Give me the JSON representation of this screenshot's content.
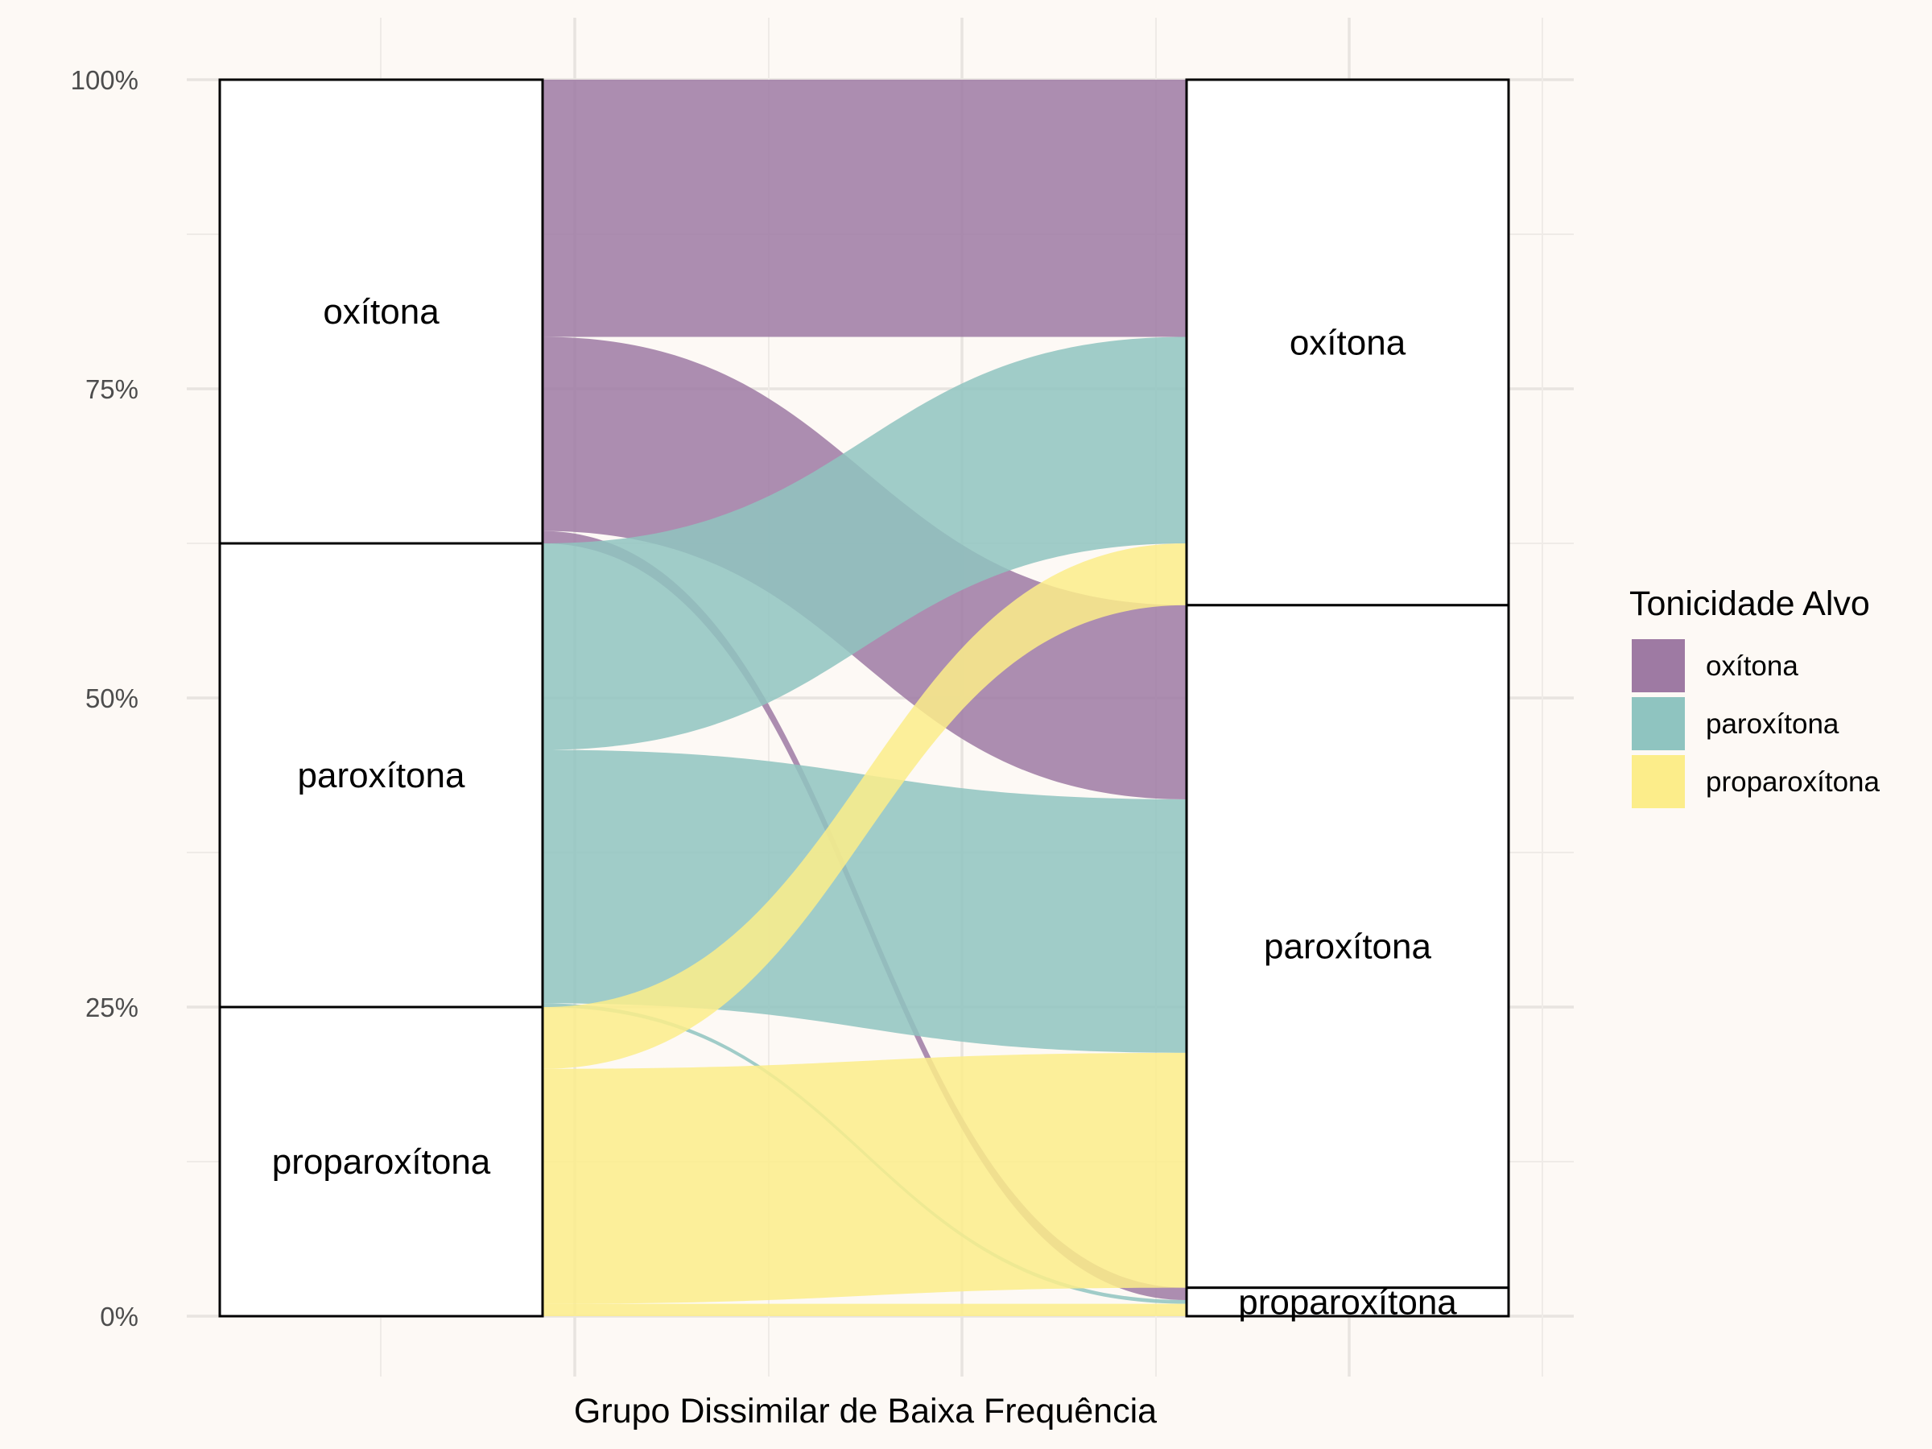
{
  "chart_data": {
    "type": "alluvial",
    "xlabel": "Grupo Dissimilar de Baixa Frequência",
    "ylabel": "",
    "y_ticks": [
      "0%",
      "25%",
      "50%",
      "75%",
      "100%"
    ],
    "ylim": [
      0,
      1
    ],
    "grid": true,
    "legend": {
      "title": "Tonicidade Alvo",
      "placement": "right",
      "entries": [
        {
          "name": "oxítona",
          "color": "#9e7aa3"
        },
        {
          "name": "paroxítona",
          "color": "#8fc4c0"
        },
        {
          "name": "proparoxítona",
          "color": "#fced8a"
        }
      ]
    },
    "axis_left": {
      "strata": [
        {
          "label": "oxítona",
          "share": 0.375
        },
        {
          "label": "paroxítona",
          "share": 0.375
        },
        {
          "label": "proparoxítona",
          "share": 0.25
        }
      ]
    },
    "axis_right": {
      "strata": [
        {
          "label": "oxítona",
          "share": 0.425
        },
        {
          "label": "paroxítona",
          "share": 0.552
        },
        {
          "label": "proparoxítona",
          "share": 0.023
        }
      ]
    },
    "flows": [
      {
        "from": "oxítona",
        "to": "oxítona",
        "fill": "oxítona",
        "share": 0.208
      },
      {
        "from": "oxítona",
        "to": "paroxítona",
        "fill": "oxítona",
        "share": 0.157
      },
      {
        "from": "oxítona",
        "to": "proparoxítona",
        "fill": "oxítona",
        "share": 0.01
      },
      {
        "from": "paroxítona",
        "to": "oxítona",
        "fill": "paroxítona",
        "share": 0.167
      },
      {
        "from": "paroxítona",
        "to": "paroxítona",
        "fill": "paroxítona",
        "share": 0.205
      },
      {
        "from": "paroxítona",
        "to": "proparoxítona",
        "fill": "paroxítona",
        "share": 0.003
      },
      {
        "from": "proparoxítona",
        "to": "oxítona",
        "fill": "proparoxítona",
        "share": 0.05
      },
      {
        "from": "proparoxítona",
        "to": "paroxítona",
        "fill": "proparoxítona",
        "share": 0.19
      },
      {
        "from": "proparoxítona",
        "to": "proparoxítona",
        "fill": "proparoxítona",
        "share": 0.01
      }
    ]
  }
}
